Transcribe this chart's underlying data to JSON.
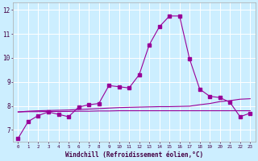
{
  "xlabel": "Windchill (Refroidissement éolien,°C)",
  "background_color": "#cceeff",
  "line_color": "#990099",
  "grid_color": "#aaddcc",
  "xlim": [
    -0.5,
    23.5
  ],
  "ylim": [
    6.5,
    12.3
  ],
  "yticks": [
    7,
    8,
    9,
    10,
    11,
    12
  ],
  "xtick_labels": [
    "0",
    "1",
    "2",
    "3",
    "4",
    "5",
    "6",
    "7",
    "8",
    "9",
    "10",
    "11",
    "12",
    "13",
    "14",
    "15",
    "16",
    "17",
    "18",
    "19",
    "20",
    "21",
    "22",
    "23"
  ],
  "series": [
    {
      "x": [
        0,
        1,
        2,
        3,
        4,
        5,
        6,
        7,
        8,
        9,
        10,
        11,
        12,
        13,
        14,
        15,
        16,
        17,
        18,
        19,
        20,
        21,
        22,
        23
      ],
      "y": [
        6.65,
        7.35,
        7.6,
        7.75,
        7.65,
        7.55,
        7.95,
        8.05,
        8.1,
        8.85,
        8.8,
        8.75,
        9.3,
        10.55,
        11.3,
        11.75,
        11.75,
        9.95,
        8.7,
        8.4,
        8.35,
        8.15,
        7.55,
        7.7
      ],
      "marker": "s",
      "markersize": 2.5,
      "lw": 0.8
    },
    {
      "x": [
        0,
        1,
        2,
        3,
        4,
        5,
        6,
        7,
        8,
        9,
        10,
        11,
        12,
        13,
        14,
        15,
        16,
        17,
        18,
        19,
        20,
        21,
        22,
        23
      ],
      "y": [
        7.75,
        7.78,
        7.8,
        7.81,
        7.82,
        7.83,
        7.85,
        7.87,
        7.89,
        7.91,
        7.93,
        7.94,
        7.95,
        7.96,
        7.97,
        7.97,
        7.98,
        7.99,
        8.05,
        8.1,
        8.18,
        8.22,
        8.28,
        8.3
      ],
      "marker": null,
      "markersize": 0,
      "lw": 0.8
    },
    {
      "x": [
        0,
        1,
        2,
        3,
        4,
        5,
        6,
        7,
        8,
        9,
        10,
        11,
        12,
        13,
        14,
        15,
        16,
        17,
        18,
        19,
        20,
        21,
        22,
        23
      ],
      "y": [
        7.75,
        7.76,
        7.76,
        7.77,
        7.77,
        7.77,
        7.78,
        7.78,
        7.79,
        7.79,
        7.8,
        7.8,
        7.8,
        7.8,
        7.8,
        7.8,
        7.8,
        7.8,
        7.8,
        7.8,
        7.8,
        7.8,
        7.8,
        7.8
      ],
      "marker": null,
      "markersize": 0,
      "lw": 0.8
    }
  ]
}
